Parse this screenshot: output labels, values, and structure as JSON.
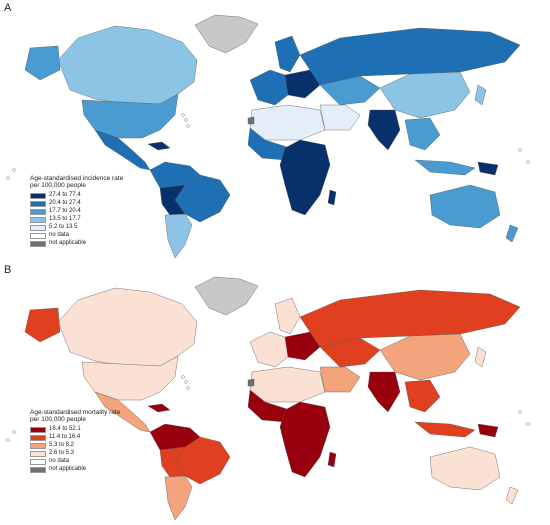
{
  "panels": [
    {
      "letter": "A",
      "legend_title_line1": "Age-standardised incidence rate",
      "legend_title_line2": "per 100,000 people",
      "legend": [
        {
          "label": "27.4 to 77.4",
          "color": "#08306b"
        },
        {
          "label": "20.4 to 27.4",
          "color": "#1f6fb4"
        },
        {
          "label": "17.7 to 20.4",
          "color": "#4a9bd1"
        },
        {
          "label": "13.5 to 17.7",
          "color": "#8cc4e6"
        },
        {
          "label": "5.2 to 13.5",
          "color": "#e4eef8"
        },
        {
          "label": "no data",
          "color": "#ffffff"
        },
        {
          "label": "not applicable",
          "color": "#707070"
        }
      ]
    },
    {
      "letter": "B",
      "legend_title_line1": "Age-standardised mortality rate",
      "legend_title_line2": "per 100,000 people",
      "legend": [
        {
          "label": "16.4 to 52.1",
          "color": "#99000d"
        },
        {
          "label": "11.4 to 16.4",
          "color": "#e0401f"
        },
        {
          "label": "5.3 to 8.2",
          "color": "#f4a47c"
        },
        {
          "label": "2.6 to 5.3",
          "color": "#fbe1d3"
        },
        {
          "label": "no data",
          "color": "#ffffff"
        },
        {
          "label": "not applicable",
          "color": "#707070"
        }
      ]
    }
  ]
}
